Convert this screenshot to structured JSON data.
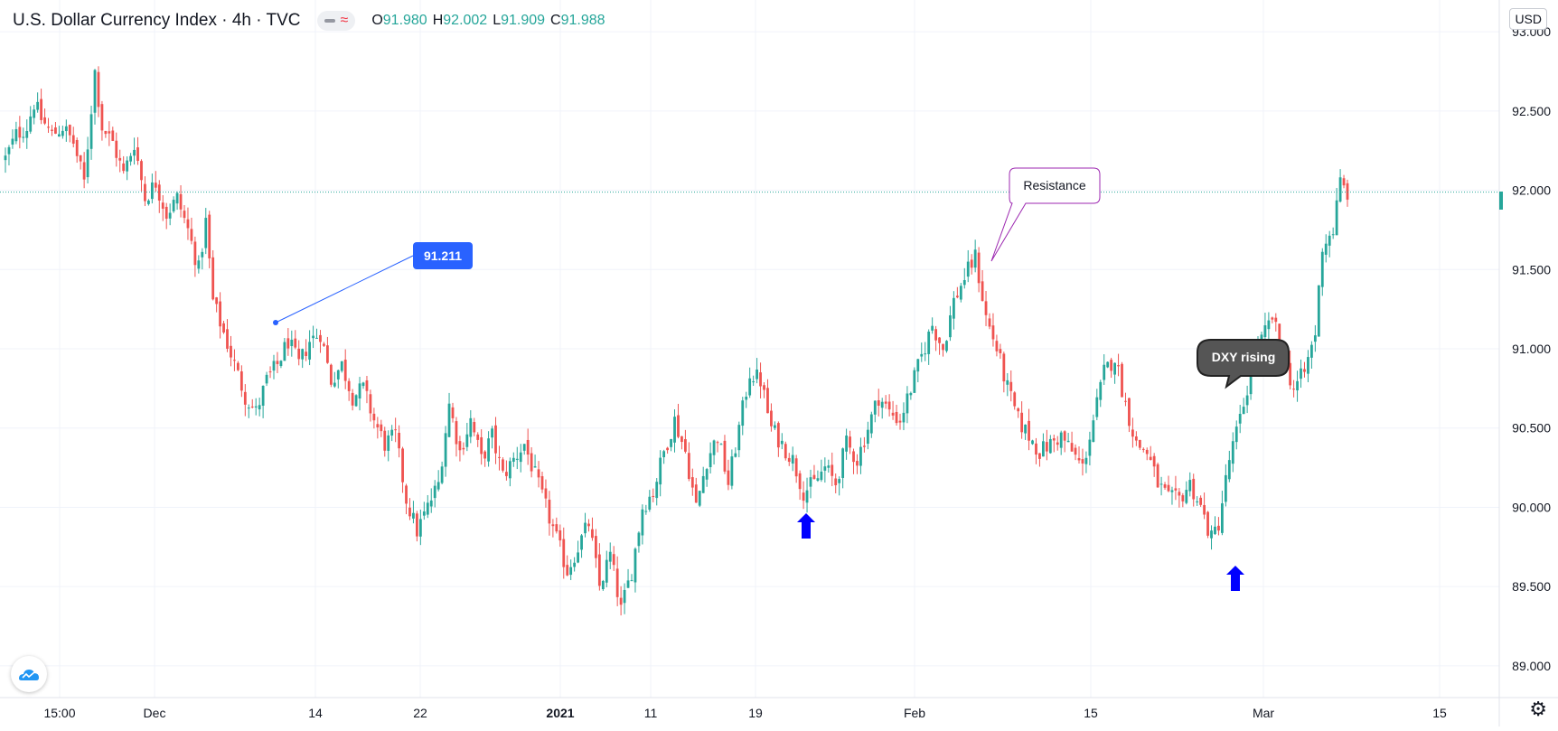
{
  "legend": {
    "symbol": "U.S. Dollar Currency Index · 4h · TVC",
    "open_label": "O",
    "open": "91.980",
    "high_label": "H",
    "high": "92.002",
    "low_label": "L",
    "low": "91.909",
    "close_label": "C",
    "close": "91.988"
  },
  "currency_tag": "USD",
  "colors": {
    "up": "#26a69a",
    "down": "#ef5350",
    "callout_blue": "#2962ff",
    "arrow": "#0000ff",
    "resistance_border": "#9c27b0",
    "grid": "#f0f3fa"
  },
  "annotations": {
    "price_label": "91.211",
    "resistance": "Resistance",
    "dxy": "DXY rising"
  },
  "chart_data": {
    "type": "candlestick",
    "title": "",
    "ylim": [
      88.8,
      93.2
    ],
    "y_ticks": [
      "93.000",
      "92.500",
      "92.000",
      "91.500",
      "91.000",
      "90.500",
      "90.000",
      "89.500",
      "89.000"
    ],
    "x_ticks": [
      "15:00",
      "Dec",
      "14",
      "22",
      "2021",
      "11",
      "19",
      "Feb",
      "15",
      "Mar",
      "15"
    ],
    "last_price": 91.988,
    "path": [
      [
        0,
        92.2
      ],
      [
        3,
        92.35
      ],
      [
        6,
        92.4
      ],
      [
        8,
        92.55
      ],
      [
        10,
        92.45
      ],
      [
        13,
        92.35
      ],
      [
        16,
        92.4
      ],
      [
        19,
        92.3
      ],
      [
        22,
        92.05
      ],
      [
        25,
        92.75
      ],
      [
        27,
        92.4
      ],
      [
        30,
        92.3
      ],
      [
        33,
        92.1
      ],
      [
        36,
        92.3
      ],
      [
        39,
        91.95
      ],
      [
        42,
        92.05
      ],
      [
        45,
        91.85
      ],
      [
        48,
        91.95
      ],
      [
        51,
        91.75
      ],
      [
        54,
        91.5
      ],
      [
        56,
        91.8
      ],
      [
        58,
        91.3
      ],
      [
        61,
        91.1
      ],
      [
        64,
        90.9
      ],
      [
        67,
        90.7
      ],
      [
        70,
        90.6
      ],
      [
        73,
        90.8
      ],
      [
        76,
        90.9
      ],
      [
        79,
        91.05
      ],
      [
        82,
        90.9
      ],
      [
        85,
        91.05
      ],
      [
        88,
        91.1
      ],
      [
        91,
        90.8
      ],
      [
        94,
        90.9
      ],
      [
        97,
        90.7
      ],
      [
        100,
        90.75
      ],
      [
        103,
        90.55
      ],
      [
        106,
        90.4
      ],
      [
        109,
        90.45
      ],
      [
        112,
        90.05
      ],
      [
        115,
        89.85
      ],
      [
        118,
        90.0
      ],
      [
        121,
        90.15
      ],
      [
        124,
        90.65
      ],
      [
        127,
        90.35
      ],
      [
        130,
        90.55
      ],
      [
        133,
        90.3
      ],
      [
        136,
        90.45
      ],
      [
        139,
        90.2
      ],
      [
        142,
        90.3
      ],
      [
        145,
        90.4
      ],
      [
        148,
        90.2
      ],
      [
        151,
        90.0
      ],
      [
        154,
        89.8
      ],
      [
        157,
        89.6
      ],
      [
        160,
        89.75
      ],
      [
        163,
        89.9
      ],
      [
        166,
        89.5
      ],
      [
        169,
        89.7
      ],
      [
        172,
        89.35
      ],
      [
        175,
        89.6
      ],
      [
        178,
        90.0
      ],
      [
        181,
        90.1
      ],
      [
        184,
        90.35
      ],
      [
        187,
        90.55
      ],
      [
        190,
        90.35
      ],
      [
        193,
        90.0
      ],
      [
        196,
        90.3
      ],
      [
        199,
        90.45
      ],
      [
        202,
        90.15
      ],
      [
        205,
        90.5
      ],
      [
        208,
        90.85
      ],
      [
        211,
        90.8
      ],
      [
        214,
        90.5
      ],
      [
        217,
        90.4
      ],
      [
        220,
        90.3
      ],
      [
        223,
        90.1
      ],
      [
        226,
        90.15
      ],
      [
        229,
        90.25
      ],
      [
        232,
        90.15
      ],
      [
        235,
        90.4
      ],
      [
        238,
        90.3
      ],
      [
        241,
        90.5
      ],
      [
        244,
        90.7
      ],
      [
        247,
        90.6
      ],
      [
        250,
        90.55
      ],
      [
        253,
        90.75
      ],
      [
        256,
        90.95
      ],
      [
        259,
        91.15
      ],
      [
        262,
        91.0
      ],
      [
        265,
        91.3
      ],
      [
        268,
        91.45
      ],
      [
        271,
        91.58
      ],
      [
        274,
        91.2
      ],
      [
        277,
        91.0
      ],
      [
        280,
        90.75
      ],
      [
        283,
        90.55
      ],
      [
        286,
        90.45
      ],
      [
        289,
        90.35
      ],
      [
        292,
        90.4
      ],
      [
        295,
        90.45
      ],
      [
        298,
        90.35
      ],
      [
        301,
        90.25
      ],
      [
        304,
        90.55
      ],
      [
        307,
        90.85
      ],
      [
        310,
        90.95
      ],
      [
        313,
        90.65
      ],
      [
        316,
        90.4
      ],
      [
        319,
        90.35
      ],
      [
        322,
        90.15
      ],
      [
        325,
        90.05
      ],
      [
        328,
        90.05
      ],
      [
        331,
        90.15
      ],
      [
        334,
        90.0
      ],
      [
        337,
        89.8
      ],
      [
        339,
        89.9
      ],
      [
        342,
        90.3
      ],
      [
        345,
        90.55
      ],
      [
        348,
        90.85
      ],
      [
        351,
        91.05
      ],
      [
        354,
        91.2
      ],
      [
        357,
        90.95
      ],
      [
        360,
        90.75
      ],
      [
        363,
        90.85
      ],
      [
        366,
        91.1
      ],
      [
        368,
        91.65
      ],
      [
        371,
        91.75
      ],
      [
        373,
        92.05
      ],
      [
        375,
        91.98
      ]
    ]
  }
}
